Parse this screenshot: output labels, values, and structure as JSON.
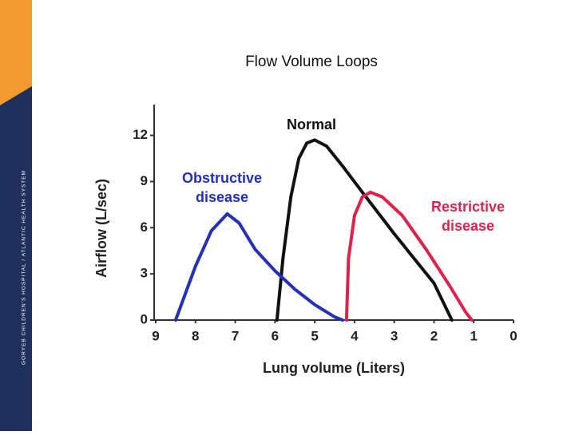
{
  "branding": "GORYEB CHILDREN'S HOSPITAL / ATLANTIC HEALTH SYSTEM",
  "chart_data": {
    "type": "line",
    "title": "Flow Volume Loops",
    "x_label": "Lung volume (Liters)",
    "y_label": "Airflow (L/sec)",
    "xlim": [
      9,
      0
    ],
    "ylim": [
      0,
      14
    ],
    "xticks": [
      9,
      8,
      7,
      6,
      5,
      4,
      3,
      2,
      1,
      0
    ],
    "yticks": [
      0,
      3,
      6,
      9,
      12
    ],
    "series": [
      {
        "name": [
          "Normal"
        ],
        "color": "#111111",
        "x": [
          5.95,
          5.8,
          5.6,
          5.4,
          5.2,
          5.0,
          4.7,
          4.3,
          3.8,
          3.0,
          2.0,
          1.55
        ],
        "values": [
          0,
          4,
          8,
          10.5,
          11.5,
          11.7,
          11.3,
          10,
          8.3,
          5.6,
          2.4,
          0
        ]
      },
      {
        "name": [
          "Obstructive",
          "disease"
        ],
        "color": "#2230c0",
        "x": [
          8.5,
          8.0,
          7.6,
          7.2,
          6.9,
          6.5,
          6.0,
          5.5,
          5.0,
          4.5,
          4.3
        ],
        "values": [
          0,
          3.5,
          5.8,
          6.9,
          6.3,
          4.6,
          3.2,
          2.0,
          1.0,
          0.2,
          0
        ]
      },
      {
        "name": [
          "Restrictive",
          "disease"
        ],
        "color": "#e0204a",
        "x": [
          4.2,
          4.15,
          4.0,
          3.8,
          3.6,
          3.3,
          2.8,
          2.2,
          1.6,
          1.2,
          1.05
        ],
        "values": [
          0,
          4,
          6.8,
          8,
          8.3,
          8.0,
          6.8,
          4.6,
          2.2,
          0.5,
          0
        ]
      }
    ]
  }
}
